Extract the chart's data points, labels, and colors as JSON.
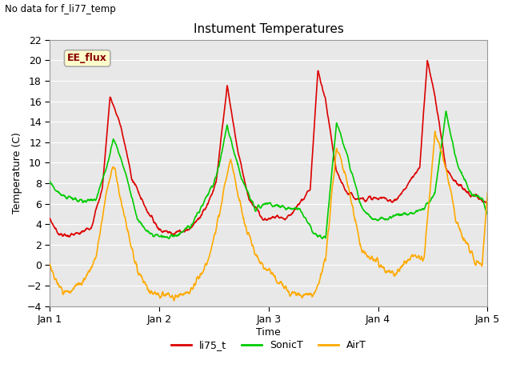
{
  "title": "Instument Temperatures",
  "ylabel": "Temperature (C)",
  "xlabel": "Time",
  "xlim": [
    0,
    4
  ],
  "ylim": [
    -4,
    22
  ],
  "yticks": [
    -4,
    -2,
    0,
    2,
    4,
    6,
    8,
    10,
    12,
    14,
    16,
    18,
    20,
    22
  ],
  "xtick_labels": [
    "Jan 1",
    "Jan 2",
    "Jan 3",
    "Jan 4",
    "Jan 5"
  ],
  "xtick_positions": [
    0,
    1,
    2,
    3,
    4
  ],
  "no_data_text": "No data for f_li77_temp",
  "legend_box_text": "EE_flux",
  "legend_box_color": "#ffffcc",
  "legend_box_edge": "#aaaaaa",
  "plot_bg_color": "#e8e8e8",
  "fig_bg_color": "#ffffff",
  "line_li75_color": "#dd0000",
  "line_sonic_color": "#00cc00",
  "line_air_color": "#ffaa00",
  "line_width": 1.2,
  "red_kx": [
    0,
    0.07,
    0.12,
    0.18,
    0.28,
    0.38,
    0.48,
    0.55,
    0.65,
    0.75,
    0.88,
    1.0,
    1.08,
    1.15,
    1.28,
    1.42,
    1.52,
    1.62,
    1.72,
    1.82,
    1.95,
    2.0,
    2.08,
    2.15,
    2.25,
    2.38,
    2.45,
    2.52,
    2.62,
    2.72,
    2.82,
    2.95,
    3.0,
    3.08,
    3.15,
    3.25,
    3.38,
    3.45,
    3.52,
    3.62,
    3.72,
    3.82,
    3.92,
    4.0
  ],
  "red_ky": [
    4.5,
    3.2,
    2.9,
    2.9,
    3.1,
    3.8,
    7.5,
    16.5,
    13.5,
    8.5,
    5.5,
    3.5,
    3.2,
    3.2,
    3.5,
    5.5,
    8.0,
    17.5,
    11.0,
    6.5,
    4.5,
    4.5,
    4.8,
    4.5,
    5.5,
    7.5,
    19.0,
    16.0,
    9.0,
    7.0,
    6.5,
    6.5,
    6.5,
    6.5,
    6.2,
    7.5,
    9.5,
    20.0,
    16.5,
    9.5,
    8.0,
    7.0,
    6.5,
    6.0
  ],
  "green_kx": [
    0,
    0.07,
    0.12,
    0.2,
    0.3,
    0.42,
    0.52,
    0.58,
    0.68,
    0.8,
    0.92,
    1.0,
    1.08,
    1.18,
    1.3,
    1.42,
    1.52,
    1.62,
    1.75,
    1.88,
    2.0,
    2.08,
    2.18,
    2.28,
    2.42,
    2.52,
    2.62,
    2.72,
    2.85,
    2.95,
    3.0,
    3.08,
    3.18,
    3.28,
    3.42,
    3.52,
    3.62,
    3.72,
    3.85,
    3.95,
    4.0
  ],
  "green_ky": [
    8.2,
    7.2,
    6.8,
    6.5,
    6.2,
    6.5,
    9.5,
    12.5,
    9.5,
    4.5,
    3.0,
    2.8,
    2.8,
    3.0,
    4.0,
    6.5,
    8.5,
    13.5,
    8.5,
    5.5,
    6.0,
    5.8,
    5.5,
    5.5,
    3.0,
    2.5,
    14.0,
    10.5,
    5.5,
    4.5,
    4.5,
    4.5,
    5.0,
    5.0,
    5.5,
    7.0,
    15.0,
    10.0,
    7.0,
    6.5,
    5.0
  ],
  "air_kx": [
    0,
    0.05,
    0.12,
    0.2,
    0.3,
    0.42,
    0.52,
    0.58,
    0.68,
    0.78,
    0.9,
    1.0,
    1.08,
    1.18,
    1.3,
    1.45,
    1.55,
    1.65,
    1.78,
    1.9,
    2.0,
    2.08,
    2.18,
    2.3,
    2.42,
    2.52,
    2.62,
    2.72,
    2.85,
    2.95,
    3.0,
    3.05,
    3.15,
    3.25,
    3.35,
    3.42,
    3.52,
    3.62,
    3.72,
    3.88,
    3.95,
    4.0
  ],
  "air_ky": [
    0.0,
    -1.5,
    -2.5,
    -2.5,
    -1.5,
    0.5,
    7.5,
    9.8,
    5.0,
    0.0,
    -2.5,
    -2.8,
    -3.0,
    -3.0,
    -2.5,
    0.5,
    5.0,
    10.5,
    4.0,
    0.5,
    -0.5,
    -1.5,
    -2.5,
    -3.0,
    -2.8,
    0.5,
    11.5,
    8.0,
    1.5,
    0.5,
    0.5,
    -0.2,
    -1.0,
    0.5,
    1.0,
    0.5,
    13.0,
    9.5,
    4.0,
    0.5,
    0.0,
    7.0
  ]
}
